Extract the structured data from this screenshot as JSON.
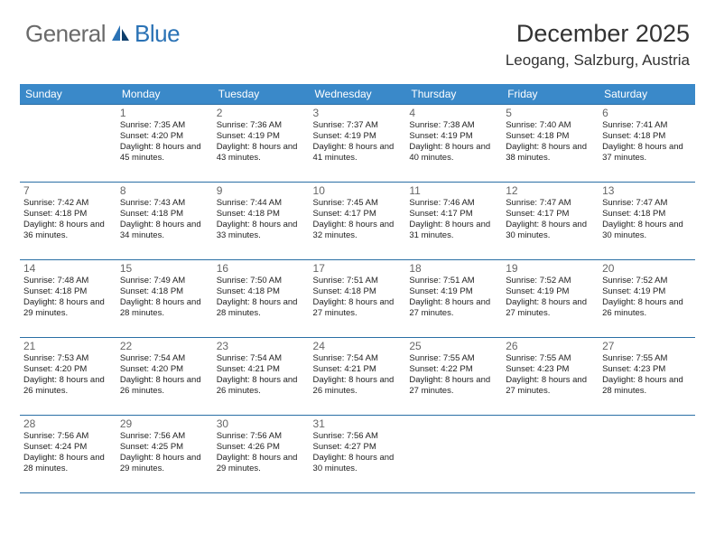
{
  "logo": {
    "text1": "General",
    "text2": "Blue"
  },
  "title": "December 2025",
  "location": "Leogang, Salzburg, Austria",
  "colors": {
    "header_bg": "#3a89c9",
    "header_text": "#ffffff",
    "border": "#2a6fa5",
    "daynum": "#666666",
    "body_text": "#222222",
    "logo_gray": "#6a6a6a",
    "logo_blue": "#2a72b5"
  },
  "weekdays": [
    "Sunday",
    "Monday",
    "Tuesday",
    "Wednesday",
    "Thursday",
    "Friday",
    "Saturday"
  ],
  "weeks": [
    [
      null,
      {
        "d": "1",
        "sr": "7:35 AM",
        "ss": "4:20 PM",
        "dl": "8 hours and 45 minutes."
      },
      {
        "d": "2",
        "sr": "7:36 AM",
        "ss": "4:19 PM",
        "dl": "8 hours and 43 minutes."
      },
      {
        "d": "3",
        "sr": "7:37 AM",
        "ss": "4:19 PM",
        "dl": "8 hours and 41 minutes."
      },
      {
        "d": "4",
        "sr": "7:38 AM",
        "ss": "4:19 PM",
        "dl": "8 hours and 40 minutes."
      },
      {
        "d": "5",
        "sr": "7:40 AM",
        "ss": "4:18 PM",
        "dl": "8 hours and 38 minutes."
      },
      {
        "d": "6",
        "sr": "7:41 AM",
        "ss": "4:18 PM",
        "dl": "8 hours and 37 minutes."
      }
    ],
    [
      {
        "d": "7",
        "sr": "7:42 AM",
        "ss": "4:18 PM",
        "dl": "8 hours and 36 minutes."
      },
      {
        "d": "8",
        "sr": "7:43 AM",
        "ss": "4:18 PM",
        "dl": "8 hours and 34 minutes."
      },
      {
        "d": "9",
        "sr": "7:44 AM",
        "ss": "4:18 PM",
        "dl": "8 hours and 33 minutes."
      },
      {
        "d": "10",
        "sr": "7:45 AM",
        "ss": "4:17 PM",
        "dl": "8 hours and 32 minutes."
      },
      {
        "d": "11",
        "sr": "7:46 AM",
        "ss": "4:17 PM",
        "dl": "8 hours and 31 minutes."
      },
      {
        "d": "12",
        "sr": "7:47 AM",
        "ss": "4:17 PM",
        "dl": "8 hours and 30 minutes."
      },
      {
        "d": "13",
        "sr": "7:47 AM",
        "ss": "4:18 PM",
        "dl": "8 hours and 30 minutes."
      }
    ],
    [
      {
        "d": "14",
        "sr": "7:48 AM",
        "ss": "4:18 PM",
        "dl": "8 hours and 29 minutes."
      },
      {
        "d": "15",
        "sr": "7:49 AM",
        "ss": "4:18 PM",
        "dl": "8 hours and 28 minutes."
      },
      {
        "d": "16",
        "sr": "7:50 AM",
        "ss": "4:18 PM",
        "dl": "8 hours and 28 minutes."
      },
      {
        "d": "17",
        "sr": "7:51 AM",
        "ss": "4:18 PM",
        "dl": "8 hours and 27 minutes."
      },
      {
        "d": "18",
        "sr": "7:51 AM",
        "ss": "4:19 PM",
        "dl": "8 hours and 27 minutes."
      },
      {
        "d": "19",
        "sr": "7:52 AM",
        "ss": "4:19 PM",
        "dl": "8 hours and 27 minutes."
      },
      {
        "d": "20",
        "sr": "7:52 AM",
        "ss": "4:19 PM",
        "dl": "8 hours and 26 minutes."
      }
    ],
    [
      {
        "d": "21",
        "sr": "7:53 AM",
        "ss": "4:20 PM",
        "dl": "8 hours and 26 minutes."
      },
      {
        "d": "22",
        "sr": "7:54 AM",
        "ss": "4:20 PM",
        "dl": "8 hours and 26 minutes."
      },
      {
        "d": "23",
        "sr": "7:54 AM",
        "ss": "4:21 PM",
        "dl": "8 hours and 26 minutes."
      },
      {
        "d": "24",
        "sr": "7:54 AM",
        "ss": "4:21 PM",
        "dl": "8 hours and 26 minutes."
      },
      {
        "d": "25",
        "sr": "7:55 AM",
        "ss": "4:22 PM",
        "dl": "8 hours and 27 minutes."
      },
      {
        "d": "26",
        "sr": "7:55 AM",
        "ss": "4:23 PM",
        "dl": "8 hours and 27 minutes."
      },
      {
        "d": "27",
        "sr": "7:55 AM",
        "ss": "4:23 PM",
        "dl": "8 hours and 28 minutes."
      }
    ],
    [
      {
        "d": "28",
        "sr": "7:56 AM",
        "ss": "4:24 PM",
        "dl": "8 hours and 28 minutes."
      },
      {
        "d": "29",
        "sr": "7:56 AM",
        "ss": "4:25 PM",
        "dl": "8 hours and 29 minutes."
      },
      {
        "d": "30",
        "sr": "7:56 AM",
        "ss": "4:26 PM",
        "dl": "8 hours and 29 minutes."
      },
      {
        "d": "31",
        "sr": "7:56 AM",
        "ss": "4:27 PM",
        "dl": "8 hours and 30 minutes."
      },
      null,
      null,
      null
    ]
  ],
  "labels": {
    "sunrise": "Sunrise: ",
    "sunset": "Sunset: ",
    "daylight": "Daylight: "
  }
}
